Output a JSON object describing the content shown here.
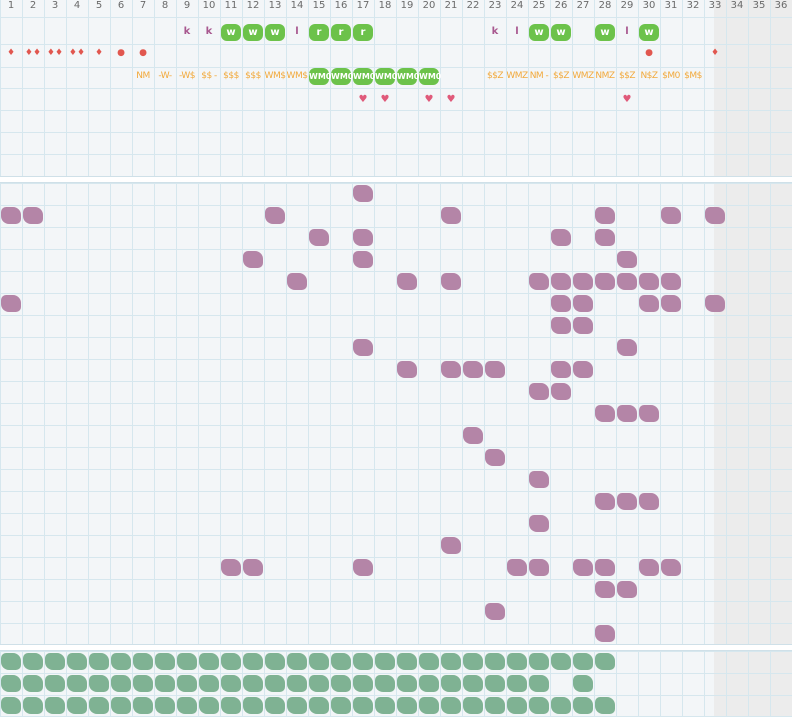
{
  "day_numbers": [
    "1",
    "2",
    "3",
    "4",
    "5",
    "6",
    "7",
    "8",
    "9",
    "10",
    "11",
    "12",
    "13",
    "14",
    "15",
    "16",
    "17",
    "18",
    "19",
    "20",
    "21",
    "22",
    "23",
    "24",
    "25",
    "26",
    "27",
    "28",
    "29",
    "30",
    "31",
    "32",
    "33",
    "34",
    "35",
    "36"
  ],
  "letters_row": [
    {
      "col": 9,
      "t": "k"
    },
    {
      "col": 10,
      "t": "k"
    },
    {
      "col": 14,
      "t": "l"
    },
    {
      "col": 23,
      "t": "k"
    },
    {
      "col": 24,
      "t": "l"
    },
    {
      "col": 29,
      "t": "l"
    }
  ],
  "green_badges": [
    {
      "col": 11,
      "t": "w"
    },
    {
      "col": 12,
      "t": "w"
    },
    {
      "col": 13,
      "t": "w"
    },
    {
      "col": 15,
      "t": "r"
    },
    {
      "col": 16,
      "t": "r"
    },
    {
      "col": 17,
      "t": "r"
    },
    {
      "col": 25,
      "t": "w"
    },
    {
      "col": 26,
      "t": "w"
    },
    {
      "col": 28,
      "t": "w"
    },
    {
      "col": 30,
      "t": "w"
    }
  ],
  "red_marks": [
    {
      "col": 1,
      "t": "♦"
    },
    {
      "col": 2,
      "t": "♦♦"
    },
    {
      "col": 3,
      "t": "♦♦"
    },
    {
      "col": 4,
      "t": "♦♦"
    },
    {
      "col": 5,
      "t": "♦"
    },
    {
      "col": 6,
      "t": "●"
    },
    {
      "col": 7,
      "t": "●"
    },
    {
      "col": 30,
      "t": "●"
    },
    {
      "col": 33,
      "t": "♦"
    }
  ],
  "weather_codes": [
    {
      "col": 7,
      "t": "NM"
    },
    {
      "col": 8,
      "t": "-W-"
    },
    {
      "col": 9,
      "t": "-W$"
    },
    {
      "col": 10,
      "t": "$$ -"
    },
    {
      "col": 11,
      "t": "$$$"
    },
    {
      "col": 12,
      "t": "$$$"
    },
    {
      "col": 13,
      "t": "WM$"
    },
    {
      "col": 14,
      "t": "WM$"
    },
    {
      "col": 23,
      "t": "$$Z"
    },
    {
      "col": 24,
      "t": "WMZ"
    },
    {
      "col": 25,
      "t": "NM -"
    },
    {
      "col": 26,
      "t": "$$Z"
    },
    {
      "col": 27,
      "t": "WMZ"
    },
    {
      "col": 28,
      "t": "NMZ"
    },
    {
      "col": 29,
      "t": "$$Z"
    },
    {
      "col": 30,
      "t": "N$Z"
    },
    {
      "col": 31,
      "t": "$M0"
    },
    {
      "col": 32,
      "t": "$M$"
    }
  ],
  "weather_badges": [
    {
      "col": 15,
      "t": "WM0"
    },
    {
      "col": 16,
      "t": "WM0"
    },
    {
      "col": 17,
      "t": "WM0"
    },
    {
      "col": 18,
      "t": "WM0"
    },
    {
      "col": 19,
      "t": "WM0"
    },
    {
      "col": 20,
      "t": "WM0"
    }
  ],
  "hearts": [
    {
      "col": 17,
      "t": "♥"
    },
    {
      "col": 18,
      "t": "♥"
    },
    {
      "col": 20,
      "t": "♥"
    },
    {
      "col": 21,
      "t": "♥"
    },
    {
      "col": 29,
      "t": "♥"
    }
  ],
  "purple_rows": [
    [
      17
    ],
    [
      1,
      2,
      13,
      21,
      28,
      31,
      33
    ],
    [
      15,
      17,
      26,
      28
    ],
    [
      12,
      17,
      29
    ],
    [
      14,
      19,
      21,
      25,
      26,
      27,
      28,
      29,
      30,
      31
    ],
    [
      1,
      26,
      27,
      30,
      31,
      33
    ],
    [
      26,
      27
    ],
    [
      17,
      29
    ],
    [
      19,
      21,
      22,
      23,
      26,
      27
    ],
    [
      25,
      26
    ],
    [
      28,
      29,
      30
    ],
    [
      22
    ],
    [
      23
    ],
    [
      25
    ],
    [
      28,
      29,
      30
    ],
    [
      25
    ],
    [
      21
    ],
    [
      11,
      12,
      17,
      24,
      25,
      27,
      28,
      30,
      31
    ],
    [
      28,
      29
    ],
    [
      23
    ],
    [
      28
    ]
  ],
  "teal_rows": [
    [
      1,
      2,
      3,
      4,
      5,
      6,
      7,
      8,
      9,
      10,
      11,
      12,
      13,
      14,
      15,
      16,
      17,
      18,
      19,
      20,
      21,
      22,
      23,
      24,
      25,
      26,
      27,
      28
    ],
    [
      1,
      2,
      3,
      4,
      5,
      6,
      7,
      8,
      9,
      10,
      11,
      12,
      13,
      14,
      15,
      16,
      17,
      18,
      19,
      20,
      21,
      22,
      23,
      24,
      25,
      27
    ],
    [
      1,
      2,
      3,
      4,
      5,
      6,
      7,
      8,
      9,
      10,
      11,
      12,
      13,
      14,
      15,
      16,
      17,
      18,
      19,
      20,
      21,
      22,
      23,
      24,
      25,
      26,
      27,
      28
    ]
  ],
  "colors": {
    "purple": "#b485a7",
    "teal": "#7fb293",
    "green": "#6cc24a",
    "red": "#e1574f",
    "orange": "#f2a93b",
    "heart": "#e05a7a"
  }
}
